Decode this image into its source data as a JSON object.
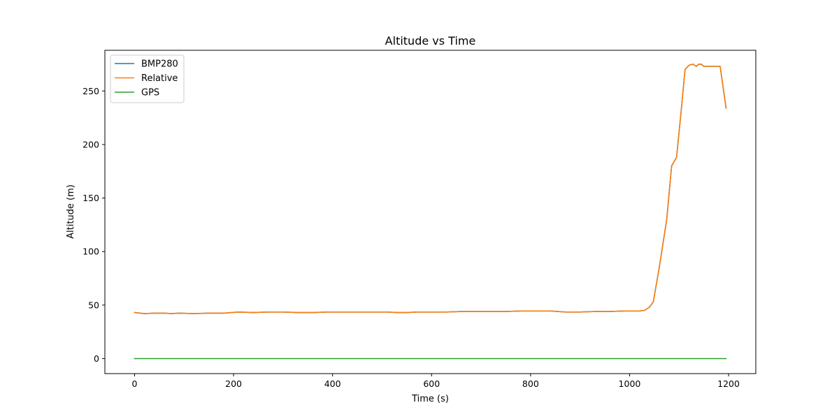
{
  "chart_data": {
    "type": "line",
    "title": "Altitude vs Time",
    "xlabel": "Time (s)",
    "ylabel": "Altitude (m)",
    "xlim": [
      -60,
      1255
    ],
    "ylim": [
      -14,
      288
    ],
    "xticks": [
      0,
      200,
      400,
      600,
      800,
      1000,
      1200
    ],
    "yticks": [
      0,
      50,
      100,
      150,
      200,
      250
    ],
    "grid": false,
    "legend_position": "top-left",
    "series": [
      {
        "name": "BMP280",
        "color": "#1f77b4",
        "x": [
          0,
          20,
          40,
          60,
          75,
          90,
          120,
          150,
          180,
          210,
          240,
          270,
          300,
          330,
          360,
          390,
          420,
          450,
          480,
          510,
          530,
          550,
          570,
          600,
          630,
          660,
          690,
          720,
          750,
          780,
          810,
          840,
          870,
          900,
          930,
          960,
          990,
          1020,
          1030,
          1040,
          1048,
          1060,
          1075,
          1085,
          1095,
          1105,
          1112,
          1120,
          1128,
          1135,
          1140,
          1145,
          1150,
          1160,
          1170,
          1183,
          1195
        ],
        "y": [
          43,
          42,
          42.5,
          42.5,
          42,
          42.5,
          42,
          42.5,
          42.5,
          43.5,
          43,
          43.5,
          43.5,
          43,
          43,
          43.5,
          43.5,
          43.5,
          43.5,
          43.5,
          43,
          43,
          43.5,
          43.5,
          43.5,
          44,
          44,
          44,
          44,
          44.5,
          44.5,
          44.5,
          43.5,
          43.5,
          44,
          44,
          44.5,
          44.5,
          45,
          48,
          53,
          85,
          130,
          180,
          188,
          235,
          270,
          274,
          275,
          273,
          275,
          275,
          273,
          273,
          273,
          273,
          234
        ]
      },
      {
        "name": "Relative",
        "color": "#ff7f0e",
        "x": [
          0,
          20,
          40,
          60,
          75,
          90,
          120,
          150,
          180,
          210,
          240,
          270,
          300,
          330,
          360,
          390,
          420,
          450,
          480,
          510,
          530,
          550,
          570,
          600,
          630,
          660,
          690,
          720,
          750,
          780,
          810,
          840,
          870,
          900,
          930,
          960,
          990,
          1020,
          1030,
          1040,
          1048,
          1060,
          1075,
          1085,
          1095,
          1105,
          1112,
          1120,
          1128,
          1135,
          1140,
          1145,
          1150,
          1160,
          1170,
          1183,
          1195
        ],
        "y": [
          43,
          42,
          42.5,
          42.5,
          42,
          42.5,
          42,
          42.5,
          42.5,
          43.5,
          43,
          43.5,
          43.5,
          43,
          43,
          43.5,
          43.5,
          43.5,
          43.5,
          43.5,
          43,
          43,
          43.5,
          43.5,
          43.5,
          44,
          44,
          44,
          44,
          44.5,
          44.5,
          44.5,
          43.5,
          43.5,
          44,
          44,
          44.5,
          44.5,
          45,
          48,
          53,
          85,
          130,
          180,
          188,
          235,
          270,
          274,
          275,
          273,
          275,
          275,
          273,
          273,
          273,
          273,
          234
        ]
      },
      {
        "name": "GPS",
        "color": "#2ca02c",
        "x": [
          0,
          1195
        ],
        "y": [
          0,
          0
        ]
      }
    ]
  }
}
